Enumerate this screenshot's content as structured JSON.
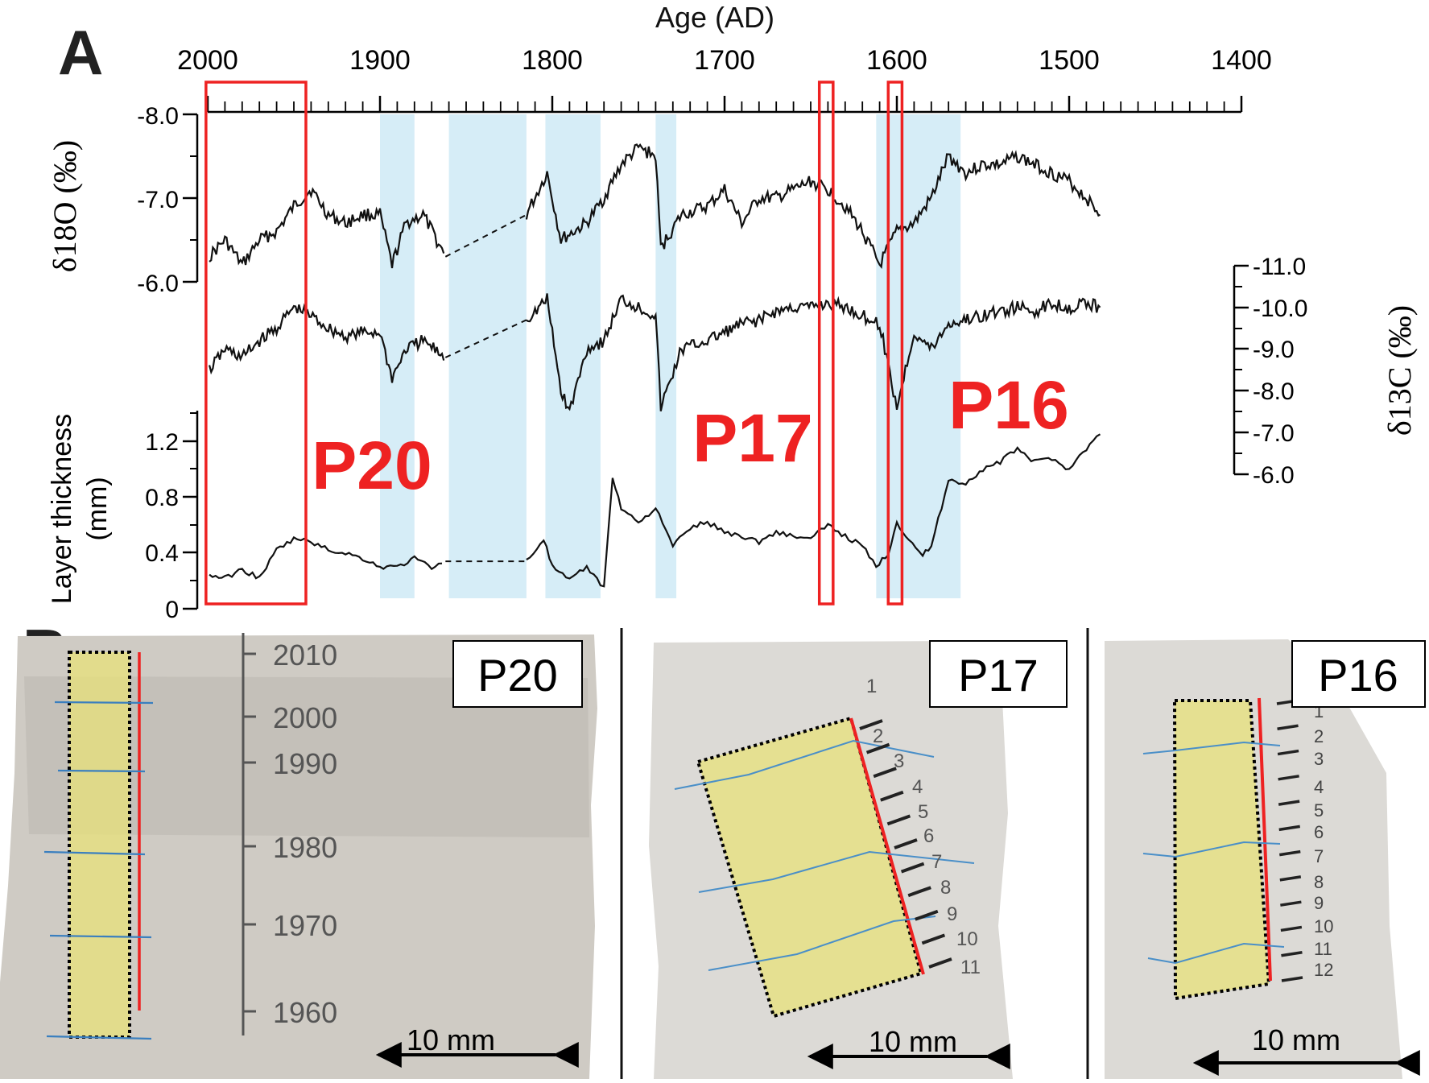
{
  "panel_a": {
    "label": "A",
    "x_axis_title": "Age (AD)",
    "x_ticks": [
      "2000",
      "1900",
      "1800",
      "1700",
      "1600",
      "1500",
      "1400"
    ],
    "d18o_label": "δ18O (‰)",
    "d18o_ticks": [
      "-8.0",
      "-7.0",
      "-6.0"
    ],
    "d13c_label": "δ13C (‰)",
    "d13c_ticks": [
      "-11.0",
      "-10.0",
      "-9.0",
      "-8.0",
      "-7.0",
      "-6.0"
    ],
    "thick_label_1": "Layer thickness",
    "thick_label_2": "(mm)",
    "thick_ticks": [
      "1.2",
      "0.8",
      "0.4",
      "0"
    ],
    "section_labels": [
      "P20",
      "P17",
      "P16"
    ],
    "highlight_color": "#ee2222",
    "shade_color": "#d6edf7"
  },
  "panel_b": {
    "label": "B",
    "p20": {
      "title": "P20",
      "year_ticks": [
        "2010",
        "2000",
        "1990",
        "1980",
        "1970",
        "1960"
      ],
      "scale": "10 mm"
    },
    "p17": {
      "title": "P17",
      "layers": [
        "1",
        "2",
        "3",
        "4",
        "5",
        "6",
        "7",
        "8",
        "9",
        "10",
        "11"
      ],
      "scale": "10 mm"
    },
    "p16": {
      "title": "P16",
      "layers": [
        "1",
        "2",
        "3",
        "4",
        "5",
        "6",
        "7",
        "8",
        "9",
        "10",
        "11",
        "12"
      ],
      "scale": "10 mm"
    }
  },
  "chart_data": {
    "type": "line",
    "x_label": "Age (AD)",
    "xlim": [
      2000,
      1400
    ],
    "series": [
      {
        "axis_label": "δ18O (‰)",
        "ylim": [
          -8.0,
          -5.5
        ],
        "x": [
          1999,
          1990,
          1980,
          1970,
          1960,
          1950,
          1940,
          1930,
          1920,
          1910,
          1900,
          1893,
          1885,
          1875,
          1862,
          1815,
          1803,
          1795,
          1780,
          1770,
          1760,
          1750,
          1740,
          1737,
          1725,
          1710,
          1700,
          1690,
          1680,
          1670,
          1660,
          1650,
          1640,
          1630,
          1620,
          1610,
          1600,
          1590,
          1580,
          1570,
          1560,
          1550,
          1540,
          1530,
          1520,
          1510,
          1500,
          1490,
          1482
        ],
        "y": [
          -6.3,
          -6.5,
          -6.2,
          -6.5,
          -6.6,
          -6.9,
          -7.1,
          -6.8,
          -6.7,
          -6.8,
          -6.8,
          -6.2,
          -6.7,
          -6.8,
          -6.3,
          -6.8,
          -7.3,
          -6.5,
          -6.7,
          -7.0,
          -7.4,
          -7.6,
          -7.5,
          -6.4,
          -6.8,
          -6.9,
          -7.1,
          -6.7,
          -7.0,
          -7.0,
          -7.1,
          -7.2,
          -7.1,
          -6.9,
          -6.6,
          -6.2,
          -6.6,
          -6.7,
          -7.0,
          -7.5,
          -7.3,
          -7.4,
          -7.4,
          -7.5,
          -7.4,
          -7.3,
          -7.2,
          -7.0,
          -6.8
        ]
      },
      {
        "axis_label": "δ13C (‰)",
        "ylim": [
          -11.0,
          -6.0
        ],
        "x": [
          1999,
          1990,
          1980,
          1970,
          1960,
          1950,
          1940,
          1930,
          1920,
          1910,
          1900,
          1893,
          1885,
          1875,
          1862,
          1815,
          1803,
          1795,
          1790,
          1780,
          1770,
          1760,
          1750,
          1740,
          1737,
          1725,
          1710,
          1700,
          1690,
          1680,
          1670,
          1660,
          1650,
          1640,
          1630,
          1620,
          1610,
          1600,
          1590,
          1580,
          1570,
          1560,
          1550,
          1540,
          1530,
          1520,
          1510,
          1500,
          1490,
          1482
        ],
        "y": [
          -8.5,
          -9.0,
          -8.8,
          -9.2,
          -9.5,
          -10.0,
          -9.8,
          -9.5,
          -9.3,
          -9.4,
          -9.4,
          -8.3,
          -9.0,
          -9.2,
          -8.8,
          -9.7,
          -10.2,
          -8.0,
          -7.5,
          -9.0,
          -9.2,
          -10.2,
          -10.0,
          -9.8,
          -7.6,
          -9.0,
          -9.2,
          -9.4,
          -9.6,
          -9.7,
          -9.9,
          -10.0,
          -10.0,
          -10.1,
          -10.0,
          -9.8,
          -9.6,
          -7.6,
          -9.4,
          -9.0,
          -9.6,
          -9.7,
          -9.8,
          -9.9,
          -10.0,
          -9.9,
          -10.1,
          -10.0,
          -10.1,
          -10.0
        ]
      },
      {
        "axis_label": "Layer thickness (mm)",
        "ylim": [
          0,
          1.4
        ],
        "x": [
          1999,
          1990,
          1980,
          1970,
          1960,
          1950,
          1940,
          1930,
          1920,
          1910,
          1900,
          1890,
          1880,
          1870,
          1862,
          1815,
          1805,
          1800,
          1790,
          1780,
          1770,
          1765,
          1760,
          1750,
          1740,
          1730,
          1720,
          1710,
          1700,
          1690,
          1680,
          1670,
          1660,
          1650,
          1640,
          1630,
          1620,
          1612,
          1605,
          1600,
          1593,
          1585,
          1580,
          1570,
          1560,
          1550,
          1540,
          1530,
          1520,
          1510,
          1500,
          1490,
          1482
        ],
        "y": [
          0.24,
          0.22,
          0.28,
          0.22,
          0.42,
          0.5,
          0.48,
          0.42,
          0.4,
          0.36,
          0.3,
          0.3,
          0.36,
          0.3,
          0.34,
          0.34,
          0.5,
          0.3,
          0.2,
          0.3,
          0.15,
          0.95,
          0.72,
          0.62,
          0.72,
          0.45,
          0.58,
          0.62,
          0.55,
          0.52,
          0.48,
          0.55,
          0.52,
          0.5,
          0.6,
          0.52,
          0.45,
          0.3,
          0.4,
          0.62,
          0.5,
          0.38,
          0.45,
          0.92,
          0.9,
          1.0,
          1.05,
          1.15,
          1.05,
          1.08,
          1.0,
          1.15,
          1.25
        ]
      }
    ],
    "dashed_gap": [
      1862,
      1815
    ],
    "shaded_bands": [
      [
        1900,
        1880
      ],
      [
        1860,
        1815
      ],
      [
        1804,
        1772
      ],
      [
        1740,
        1728
      ],
      [
        1612,
        1563
      ]
    ],
    "highlight_windows": [
      [
        2001,
        1943
      ],
      [
        1645,
        1637
      ],
      [
        1605,
        1597
      ]
    ]
  }
}
